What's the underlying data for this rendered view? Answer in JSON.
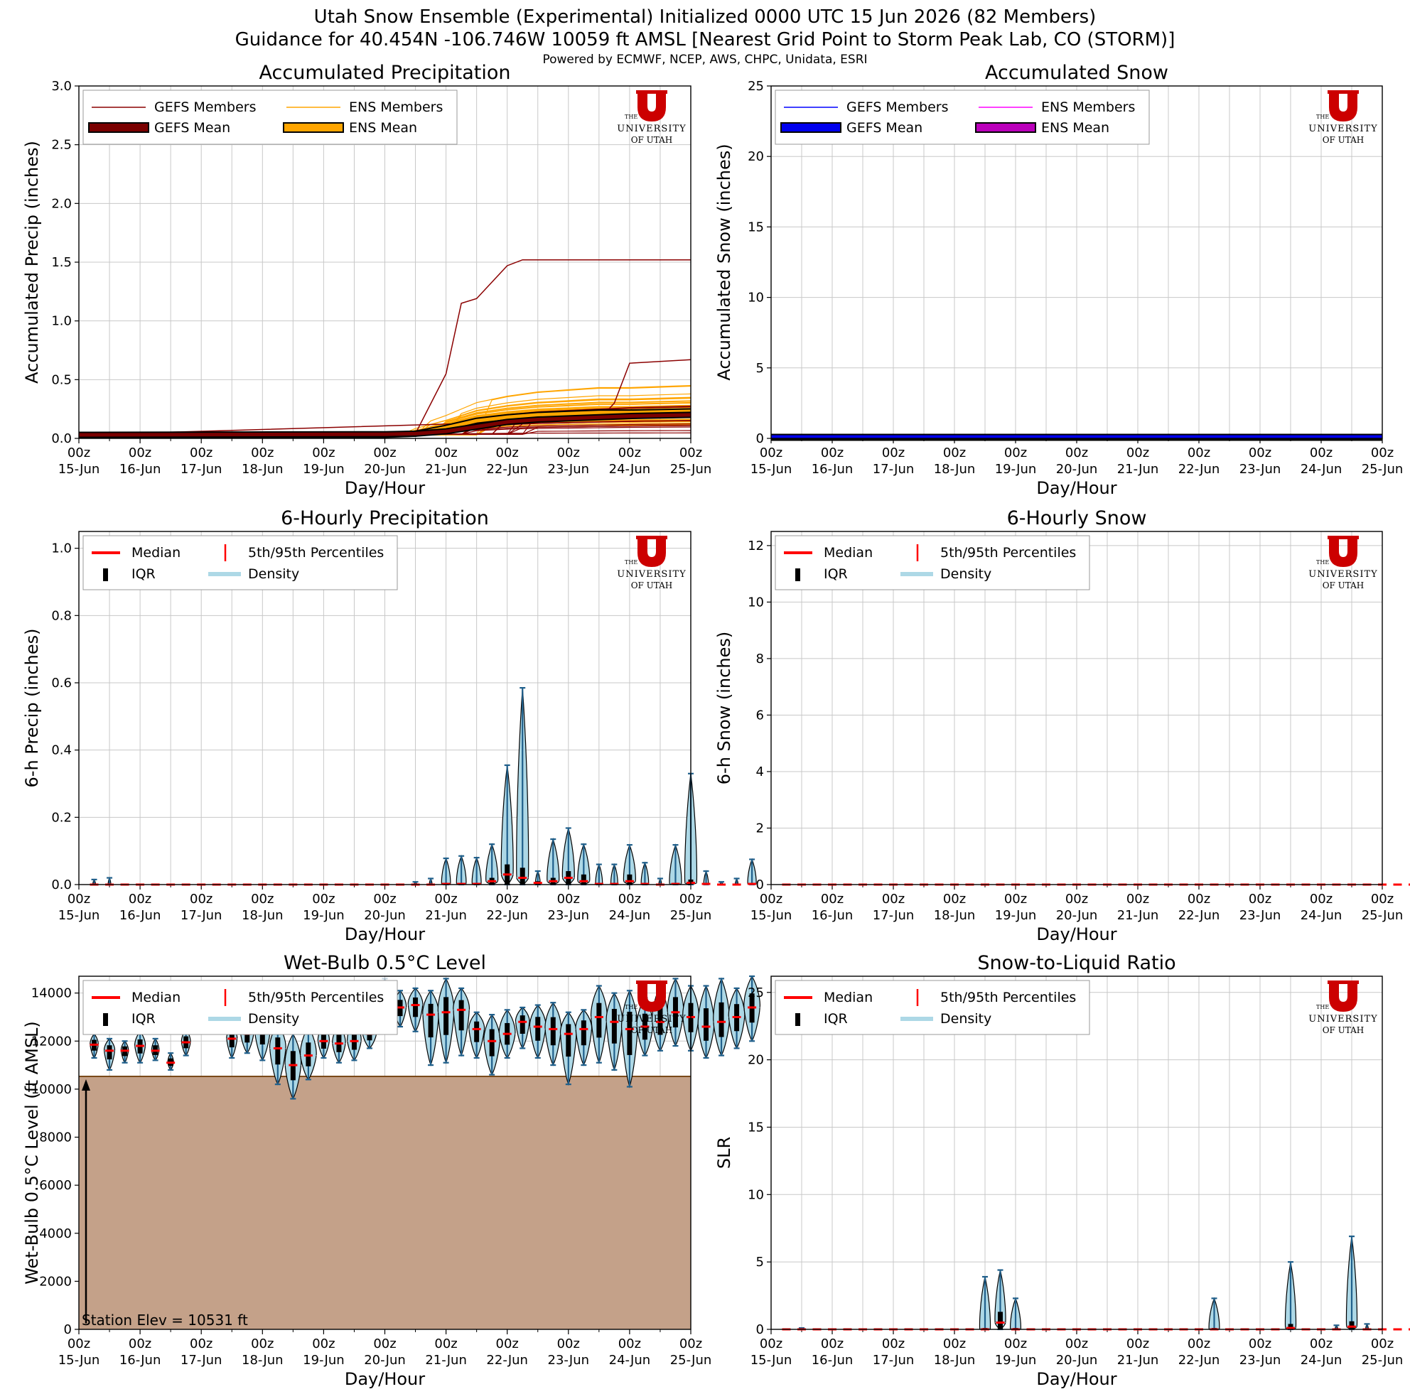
{
  "header": {
    "title_line1": "Utah Snow Ensemble (Experimental) Initialized 0000 UTC 15 Jun 2026 (82 Members)",
    "title_line2": "Guidance for 40.454N -106.746W 10059 ft AMSL [Nearest Grid Point to Storm Peak Lab, CO (STORM)]",
    "credits": "Powered by ECMWF, NCEP, AWS, CHPC, Unidata, ESRI"
  },
  "logo": {
    "letter": "U",
    "line1": "THE",
    "line2": "UNIVERSITY",
    "line3": "OF UTAH",
    "color": "#cc0000"
  },
  "common": {
    "xlabel": "Day/Hour",
    "tick_hour": "00z",
    "tick_days": [
      "15-Jun",
      "16-Jun",
      "17-Jun",
      "18-Jun",
      "19-Jun",
      "20-Jun",
      "21-Jun",
      "22-Jun",
      "23-Jun",
      "24-Jun",
      "25-Jun"
    ]
  },
  "legends": {
    "gefs_members": "GEFS Members",
    "ens_members": "ENS Members",
    "gefs_mean": "GEFS Mean",
    "ens_mean": "ENS Mean",
    "median": "Median",
    "percentiles": "5th/95th Percentiles",
    "iqr": "IQR",
    "density": "Density"
  },
  "colors": {
    "gefs_member_precip": "#8b0000",
    "ens_member_precip": "#ffa500",
    "gefs_mean_precip": "#7a0000",
    "ens_mean_precip": "#ffa500",
    "gefs_member_snow": "#0000ff",
    "ens_member_snow": "#ff00ff",
    "gefs_mean_snow": "#0000ee",
    "ens_mean_snow": "#bb00bb",
    "median": "#ff0000",
    "density": "#add8e6",
    "violin_edge": "#1f5f8b",
    "terrain": "#c4a189",
    "terrain_edge": "#7a4a1a",
    "grid": "#c8c8c8"
  },
  "station": {
    "label": "Station Elev = 10531 ft",
    "elevation_ft": 10531
  },
  "chart_data": [
    {
      "type": "line",
      "title": "Accumulated Precipitation",
      "xlabel": "Day/Hour",
      "ylabel": "Accumulated Precip (inches)",
      "ylim": [
        0,
        3.0
      ],
      "yticks": [
        "0.0",
        "0.5",
        "1.0",
        "1.5",
        "2.0",
        "2.5",
        "3.0"
      ],
      "x_range_days": [
        0,
        10
      ],
      "grid": true,
      "legend": "upper-left",
      "series": [
        {
          "name": "GEFS Members",
          "sample": "wettest",
          "x": [
            0,
            5.5,
            6.0,
            6.25,
            6.5,
            7.0,
            7.25,
            10
          ],
          "y": [
            0.03,
            0.04,
            0.55,
            1.15,
            1.19,
            1.47,
            1.52,
            1.52
          ]
        },
        {
          "name": "GEFS Members",
          "sample": "second",
          "x": [
            0,
            8.5,
            8.75,
            9.0,
            10
          ],
          "y": [
            0.03,
            0.16,
            0.3,
            0.64,
            0.67
          ]
        },
        {
          "name": "GEFS Mean",
          "x": [
            0,
            5.0,
            5.5,
            6.0,
            6.5,
            7.0,
            7.5,
            8.0,
            8.5,
            9.0,
            10
          ],
          "y": [
            0.03,
            0.035,
            0.04,
            0.06,
            0.1,
            0.14,
            0.16,
            0.17,
            0.18,
            0.19,
            0.2
          ]
        },
        {
          "name": "ENS Mean",
          "x": [
            0,
            5.0,
            5.5,
            6.0,
            6.5,
            7.0,
            7.5,
            8.0,
            8.5,
            9.0,
            10
          ],
          "y": [
            0.03,
            0.03,
            0.04,
            0.09,
            0.15,
            0.18,
            0.2,
            0.21,
            0.22,
            0.22,
            0.23
          ]
        }
      ]
    },
    {
      "type": "line",
      "title": "Accumulated Snow",
      "xlabel": "Day/Hour",
      "ylabel": "Accumulated Snow (inches)",
      "ylim": [
        0,
        25
      ],
      "yticks": [
        "0",
        "5",
        "10",
        "15",
        "20",
        "25"
      ],
      "x_range_days": [
        0,
        10
      ],
      "grid": true,
      "legend": "upper-left",
      "series": [
        {
          "name": "GEFS Mean",
          "x": [
            0,
            10
          ],
          "y": [
            0.1,
            0.1
          ]
        },
        {
          "name": "ENS Mean",
          "x": [
            0,
            10
          ],
          "y": [
            0.05,
            0.05
          ]
        }
      ]
    },
    {
      "type": "violin",
      "title": "6-Hourly Precipitation",
      "xlabel": "Day/Hour",
      "ylabel": "6-h Precip (inches)",
      "ylim": [
        0,
        1.05
      ],
      "yticks": [
        "0.0",
        "0.2",
        "0.4",
        "0.6",
        "0.8",
        "1.0"
      ],
      "grid": true,
      "legend": "upper-left",
      "x_step_days": 0.25,
      "x_first_day": 0.25,
      "p95": [
        0.015,
        0.02,
        0.0,
        0.0,
        0.0,
        0.0,
        0.0,
        0.0,
        0.0,
        0.0,
        0.0,
        0.0,
        0.0,
        0.0,
        0.0,
        0.0,
        0.0,
        0.0,
        0.0,
        0.0,
        0.0,
        0.008,
        0.018,
        0.078,
        0.085,
        0.08,
        0.12,
        0.355,
        0.585,
        0.04,
        0.135,
        0.168,
        0.12,
        0.06,
        0.06,
        0.118,
        0.065,
        0.018,
        0.118,
        0.33,
        0.04,
        0.008,
        0.018,
        0.075
      ],
      "median": [
        0,
        0,
        0,
        0,
        0,
        0,
        0,
        0,
        0,
        0,
        0,
        0,
        0,
        0,
        0,
        0,
        0,
        0,
        0,
        0,
        0,
        0,
        0,
        0.002,
        0.002,
        0.002,
        0.01,
        0.03,
        0.02,
        0.005,
        0.01,
        0.02,
        0.01,
        0.002,
        0.002,
        0.01,
        0.002,
        0,
        0.002,
        0.005,
        0.002,
        0,
        0,
        0.002
      ],
      "q75": [
        0,
        0,
        0,
        0,
        0,
        0,
        0,
        0,
        0,
        0,
        0,
        0,
        0,
        0,
        0,
        0,
        0,
        0,
        0,
        0,
        0,
        0,
        0.002,
        0.005,
        0.005,
        0.005,
        0.02,
        0.06,
        0.05,
        0.01,
        0.02,
        0.04,
        0.03,
        0.005,
        0.005,
        0.03,
        0.005,
        0.002,
        0.005,
        0.015,
        0.005,
        0,
        0.002,
        0.005
      ]
    },
    {
      "type": "violin",
      "title": "6-Hourly Snow",
      "xlabel": "Day/Hour",
      "ylabel": "6-h Snow (inches)",
      "ylim": [
        0,
        12.5
      ],
      "yticks": [
        "0",
        "2",
        "4",
        "6",
        "8",
        "10",
        "12"
      ],
      "grid": true,
      "legend": "upper-left",
      "values": "all near 0"
    },
    {
      "type": "violin",
      "title": "Wet-Bulb 0.5°C Level",
      "xlabel": "Day/Hour",
      "ylabel": "Wet-Bulb 0.5°C Level (ft AMSL)",
      "ylim": [
        0,
        14700
      ],
      "yticks": [
        "0",
        "2000",
        "4000",
        "6000",
        "8000",
        "10000",
        "12000",
        "14000"
      ],
      "grid": true,
      "legend": "upper-left",
      "x_step_days": 0.25,
      "x_first_day": 0.25,
      "median": [
        11850,
        11600,
        11600,
        11800,
        11600,
        11100,
        11950,
        13200,
        12800,
        12100,
        12300,
        12400,
        11700,
        11000,
        11400,
        12000,
        11900,
        12000,
        12300,
        13700,
        13400,
        13500,
        13100,
        13200,
        13300,
        12500,
        12000,
        12300,
        12800,
        12600,
        12500,
        12300,
        12500,
        13000,
        12800,
        12500,
        12600,
        12800,
        13200,
        13000,
        12600,
        12800,
        13000,
        13400
      ],
      "p05": [
        11300,
        10800,
        11100,
        11100,
        11200,
        10800,
        11400,
        12500,
        12300,
        11300,
        11500,
        11200,
        10200,
        9600,
        10400,
        11300,
        11100,
        11200,
        11700,
        13000,
        12600,
        12400,
        11000,
        11100,
        11400,
        11300,
        10600,
        11300,
        11700,
        11300,
        11000,
        10200,
        11000,
        11100,
        10800,
        10100,
        11400,
        11600,
        11800,
        11600,
        11300,
        11400,
        11700,
        12000
      ],
      "p95": [
        12300,
        12100,
        12000,
        12400,
        12100,
        11500,
        12500,
        13600,
        13300,
        12600,
        13100,
        13100,
        12700,
        12300,
        12600,
        12700,
        12700,
        12900,
        13400,
        14600,
        14100,
        14200,
        14100,
        14600,
        14200,
        13200,
        13100,
        13300,
        13400,
        13500,
        13600,
        13200,
        13300,
        14300,
        14000,
        14100,
        13800,
        14300,
        14600,
        14300,
        14300,
        14600,
        14200,
        14700
      ],
      "faded_through_day": 6.0
    },
    {
      "type": "violin",
      "title": "Snow-to-Liquid Ratio",
      "xlabel": "Day/Hour",
      "ylabel": "SLR",
      "ylim": [
        0,
        26.2
      ],
      "yticks": [
        "0",
        "5",
        "10",
        "15",
        "20",
        "25"
      ],
      "grid": true,
      "legend": "upper-left",
      "x_step_days": 0.25,
      "x_first_day": 0.25,
      "p95": [
        0,
        0.1,
        0,
        0,
        0,
        0,
        0,
        0,
        0,
        0,
        0,
        0,
        0,
        3.9,
        4.4,
        2.3,
        0,
        0,
        0,
        0,
        0,
        0,
        0,
        0,
        0,
        0,
        0,
        0,
        2.3,
        0,
        0,
        0,
        0,
        5.0,
        0,
        0,
        0.3,
        6.9,
        0.4,
        0,
        0,
        0,
        0,
        0
      ],
      "q75": [
        0,
        0,
        0,
        0,
        0,
        0,
        0,
        0,
        0,
        0,
        0,
        0,
        0,
        0.1,
        1.3,
        0.1,
        0,
        0,
        0,
        0,
        0,
        0,
        0,
        0,
        0,
        0,
        0,
        0,
        0.1,
        0,
        0,
        0,
        0,
        0.4,
        0,
        0,
        0,
        0.6,
        0,
        0,
        0,
        0,
        0,
        0
      ],
      "median": [
        0,
        0,
        0,
        0,
        0,
        0,
        0,
        0,
        0,
        0,
        0,
        0,
        0,
        0,
        0.5,
        0,
        0,
        0,
        0,
        0,
        0,
        0,
        0,
        0,
        0,
        0,
        0,
        0,
        0,
        0,
        0,
        0,
        0,
        0.1,
        0,
        0,
        0,
        0.2,
        0,
        0,
        0,
        0,
        0,
        0
      ]
    }
  ]
}
